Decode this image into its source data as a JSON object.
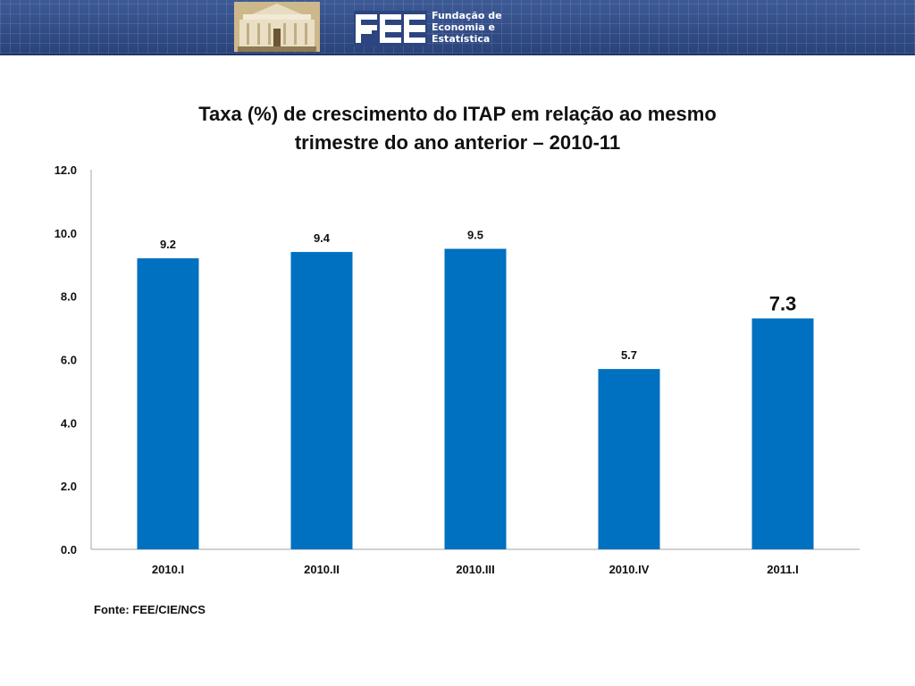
{
  "header": {
    "brand_lines": [
      "Fundação de",
      "Economia e",
      "Estatística"
    ]
  },
  "colors": {
    "bar": "#0070c0",
    "banner": "#2f4a82",
    "axis": "#a6a6a6"
  },
  "chart_data": {
    "type": "bar",
    "title_lines": [
      "Taxa (%) de crescimento do ITAP em relação ao mesmo",
      "trimestre do ano anterior – 2010-11"
    ],
    "categories": [
      "2010.I",
      "2010.II",
      "2010.III",
      "2010.IV",
      "2011.I"
    ],
    "values": [
      9.2,
      9.4,
      9.5,
      5.7,
      7.3
    ],
    "labels": [
      "9.2",
      "9.4",
      "9.5",
      "5.7",
      "7.3"
    ],
    "yticks": [
      "0.0",
      "2.0",
      "4.0",
      "6.0",
      "8.0",
      "10.0",
      "12.0"
    ],
    "ylim": [
      0,
      12
    ],
    "xlabel": "",
    "ylabel": "",
    "legend": "none",
    "grid": false
  },
  "footer": {
    "source": "Fonte: FEE/CIE/NCS"
  }
}
